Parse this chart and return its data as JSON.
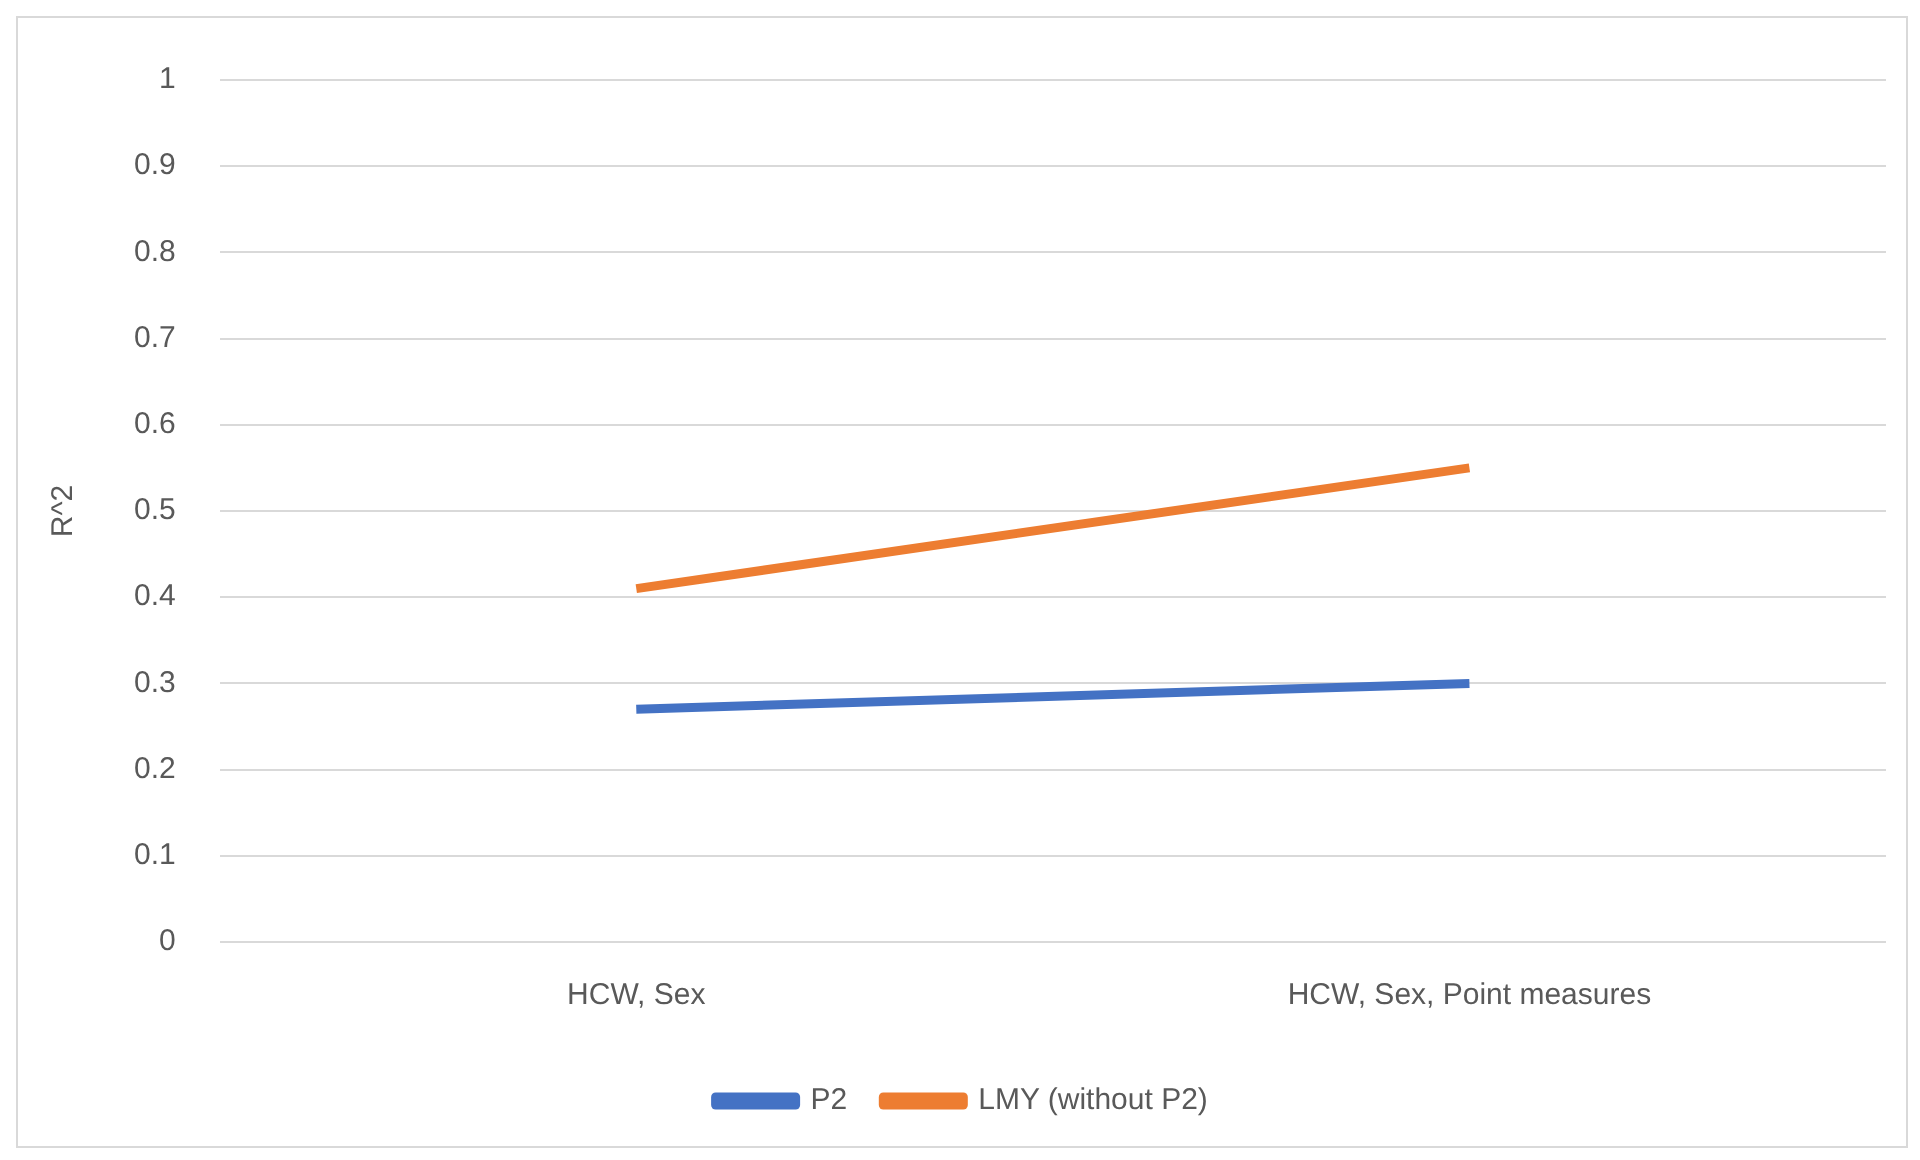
{
  "chart_data": {
    "type": "line",
    "categories": [
      "HCW, Sex",
      "HCW, Sex, Point measures"
    ],
    "series": [
      {
        "name": "P2",
        "color": "#4472c4",
        "values": [
          0.27,
          0.3
        ]
      },
      {
        "name": "LMY (without P2)",
        "color": "#ed7d31",
        "values": [
          0.41,
          0.55
        ]
      }
    ],
    "ylabel": "R^2",
    "ylim": [
      0,
      1
    ],
    "yticks": [
      0,
      0.1,
      0.2,
      0.3,
      0.4,
      0.5,
      0.6,
      0.7,
      0.8,
      0.9,
      1
    ],
    "grid": "y",
    "legend": "bottom",
    "marker": "none",
    "line_style": "solid"
  }
}
